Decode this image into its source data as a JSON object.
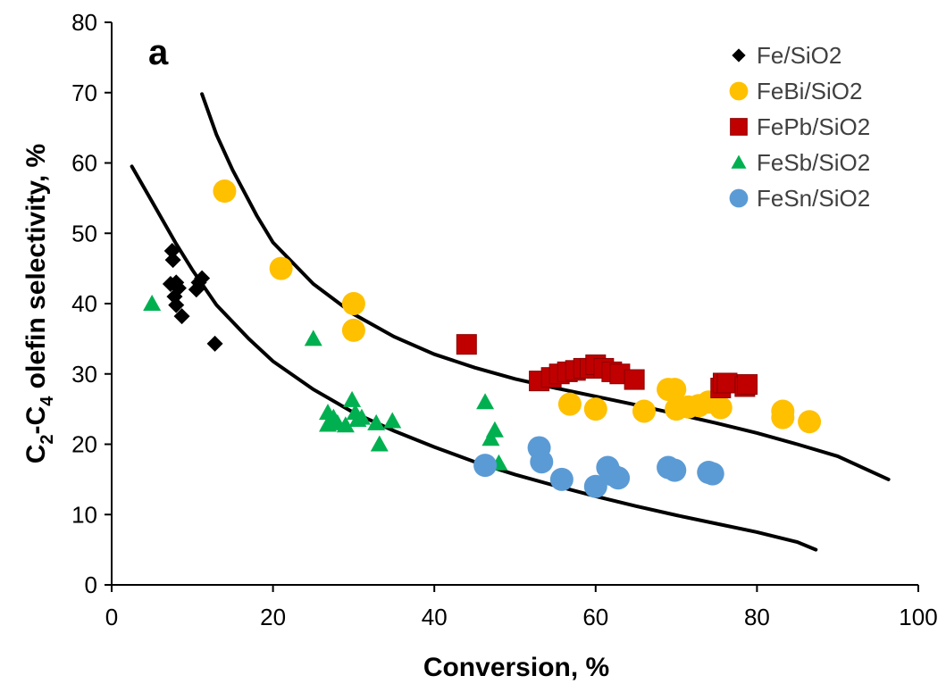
{
  "chart_data": {
    "type": "scatter",
    "panel_label": "a",
    "xlabel": "Conversion, %",
    "ylabel": "C2-C4 olefin selectivity, %",
    "ylabel_parts": {
      "c": "C",
      "s1": "2",
      "dash": "-C",
      "s2": "4",
      "rest": " olefin selectivity, %"
    },
    "xlim": [
      0,
      100
    ],
    "ylim": [
      0,
      80
    ],
    "xticks": [
      0,
      20,
      40,
      60,
      80,
      100
    ],
    "yticks": [
      0,
      10,
      20,
      30,
      40,
      50,
      60,
      70,
      80
    ],
    "grid": false,
    "legend_position": "top-right",
    "series": [
      {
        "name": "Fe/SiO2",
        "marker": "diamond",
        "color": "#000000",
        "points": [
          [
            7.5,
            47.5
          ],
          [
            7.6,
            46.2
          ],
          [
            7.3,
            42.8
          ],
          [
            8.0,
            43.0
          ],
          [
            7.8,
            41.0
          ],
          [
            8.3,
            42.2
          ],
          [
            8.0,
            39.8
          ],
          [
            8.7,
            38.2
          ],
          [
            10.5,
            42.0
          ],
          [
            10.8,
            43.0
          ],
          [
            11.2,
            43.6
          ],
          [
            12.8,
            34.3
          ]
        ]
      },
      {
        "name": "FeBi/SiO2",
        "marker": "circle",
        "color": "#FFC000",
        "points": [
          [
            14.0,
            56.0
          ],
          [
            21.0,
            45.0
          ],
          [
            30.0,
            40.0
          ],
          [
            30.0,
            36.2
          ],
          [
            56.8,
            25.7
          ],
          [
            60.0,
            25.0
          ],
          [
            66.0,
            24.7
          ],
          [
            69.0,
            27.8
          ],
          [
            69.8,
            27.8
          ],
          [
            70.0,
            25.0
          ],
          [
            71.5,
            25.3
          ],
          [
            72.8,
            25.5
          ],
          [
            74.0,
            26.0
          ],
          [
            75.5,
            25.2
          ],
          [
            83.2,
            24.7
          ],
          [
            83.2,
            23.8
          ],
          [
            86.5,
            23.2
          ]
        ]
      },
      {
        "name": "FePb/SiO2",
        "marker": "square",
        "color": "#C00000",
        "points": [
          [
            44.0,
            34.2
          ],
          [
            53.0,
            29.0
          ],
          [
            54.5,
            29.5
          ],
          [
            55.5,
            30.0
          ],
          [
            56.5,
            30.3
          ],
          [
            57.5,
            30.5
          ],
          [
            58.5,
            30.8
          ],
          [
            59.3,
            30.8
          ],
          [
            60.0,
            31.3
          ],
          [
            61.0,
            30.8
          ],
          [
            62.0,
            30.3
          ],
          [
            63.0,
            30.0
          ],
          [
            64.8,
            29.2
          ],
          [
            75.5,
            28.0
          ],
          [
            75.8,
            28.7
          ],
          [
            76.3,
            28.7
          ],
          [
            78.5,
            28.2
          ],
          [
            78.8,
            28.5
          ]
        ]
      },
      {
        "name": "FeSb/SiO2",
        "marker": "triangle",
        "color": "#00B050",
        "points": [
          [
            5.0,
            40.0
          ],
          [
            25.0,
            35.0
          ],
          [
            26.8,
            24.5
          ],
          [
            27.0,
            23.2
          ],
          [
            26.8,
            22.8
          ],
          [
            27.5,
            23.8
          ],
          [
            28.0,
            23.0
          ],
          [
            29.0,
            22.7
          ],
          [
            29.8,
            26.3
          ],
          [
            30.2,
            24.5
          ],
          [
            30.5,
            23.5
          ],
          [
            31.0,
            23.8
          ],
          [
            32.8,
            23.0
          ],
          [
            33.2,
            20.0
          ],
          [
            34.8,
            23.3
          ],
          [
            46.3,
            26.0
          ],
          [
            47.0,
            20.8
          ],
          [
            47.5,
            22.0
          ],
          [
            48.0,
            17.3
          ]
        ]
      },
      {
        "name": "FeSn/SiO2",
        "marker": "circle",
        "color": "#5B9BD5",
        "points": [
          [
            46.3,
            17.0
          ],
          [
            53.0,
            19.5
          ],
          [
            53.3,
            17.5
          ],
          [
            55.8,
            15.0
          ],
          [
            60.0,
            14.0
          ],
          [
            61.5,
            16.7
          ],
          [
            62.0,
            15.7
          ],
          [
            62.8,
            15.2
          ],
          [
            69.0,
            16.7
          ],
          [
            69.8,
            16.3
          ],
          [
            74.0,
            16.0
          ],
          [
            74.5,
            15.8
          ]
        ]
      }
    ],
    "curves": [
      {
        "points": [
          [
            2.5,
            59.5
          ],
          [
            5,
            54.5
          ],
          [
            8,
            48.5
          ],
          [
            10,
            44.8
          ],
          [
            13,
            39.8
          ],
          [
            17,
            35.0
          ],
          [
            20,
            31.8
          ],
          [
            25,
            27.8
          ],
          [
            30,
            24.5
          ],
          [
            35,
            21.9
          ],
          [
            40,
            19.6
          ],
          [
            45,
            17.5
          ],
          [
            50,
            15.7
          ],
          [
            55,
            14.1
          ],
          [
            60,
            12.6
          ],
          [
            65,
            11.2
          ],
          [
            70,
            9.9
          ],
          [
            75,
            8.7
          ],
          [
            80,
            7.5
          ],
          [
            85,
            6.1
          ],
          [
            87.3,
            5.0
          ]
        ]
      },
      {
        "points": [
          [
            11.2,
            69.8
          ],
          [
            13,
            64.0
          ],
          [
            15,
            59.0
          ],
          [
            18,
            52.5
          ],
          [
            20,
            48.7
          ],
          [
            25,
            42.8
          ],
          [
            30,
            38.5
          ],
          [
            35,
            35.3
          ],
          [
            40,
            32.8
          ],
          [
            45,
            30.9
          ],
          [
            50,
            29.3
          ],
          [
            55,
            28.0
          ],
          [
            60,
            26.8
          ],
          [
            65,
            25.6
          ],
          [
            70,
            24.3
          ],
          [
            75,
            23.0
          ],
          [
            80,
            21.6
          ],
          [
            85,
            20.0
          ],
          [
            90,
            18.3
          ],
          [
            96.3,
            15.0
          ]
        ]
      }
    ]
  }
}
